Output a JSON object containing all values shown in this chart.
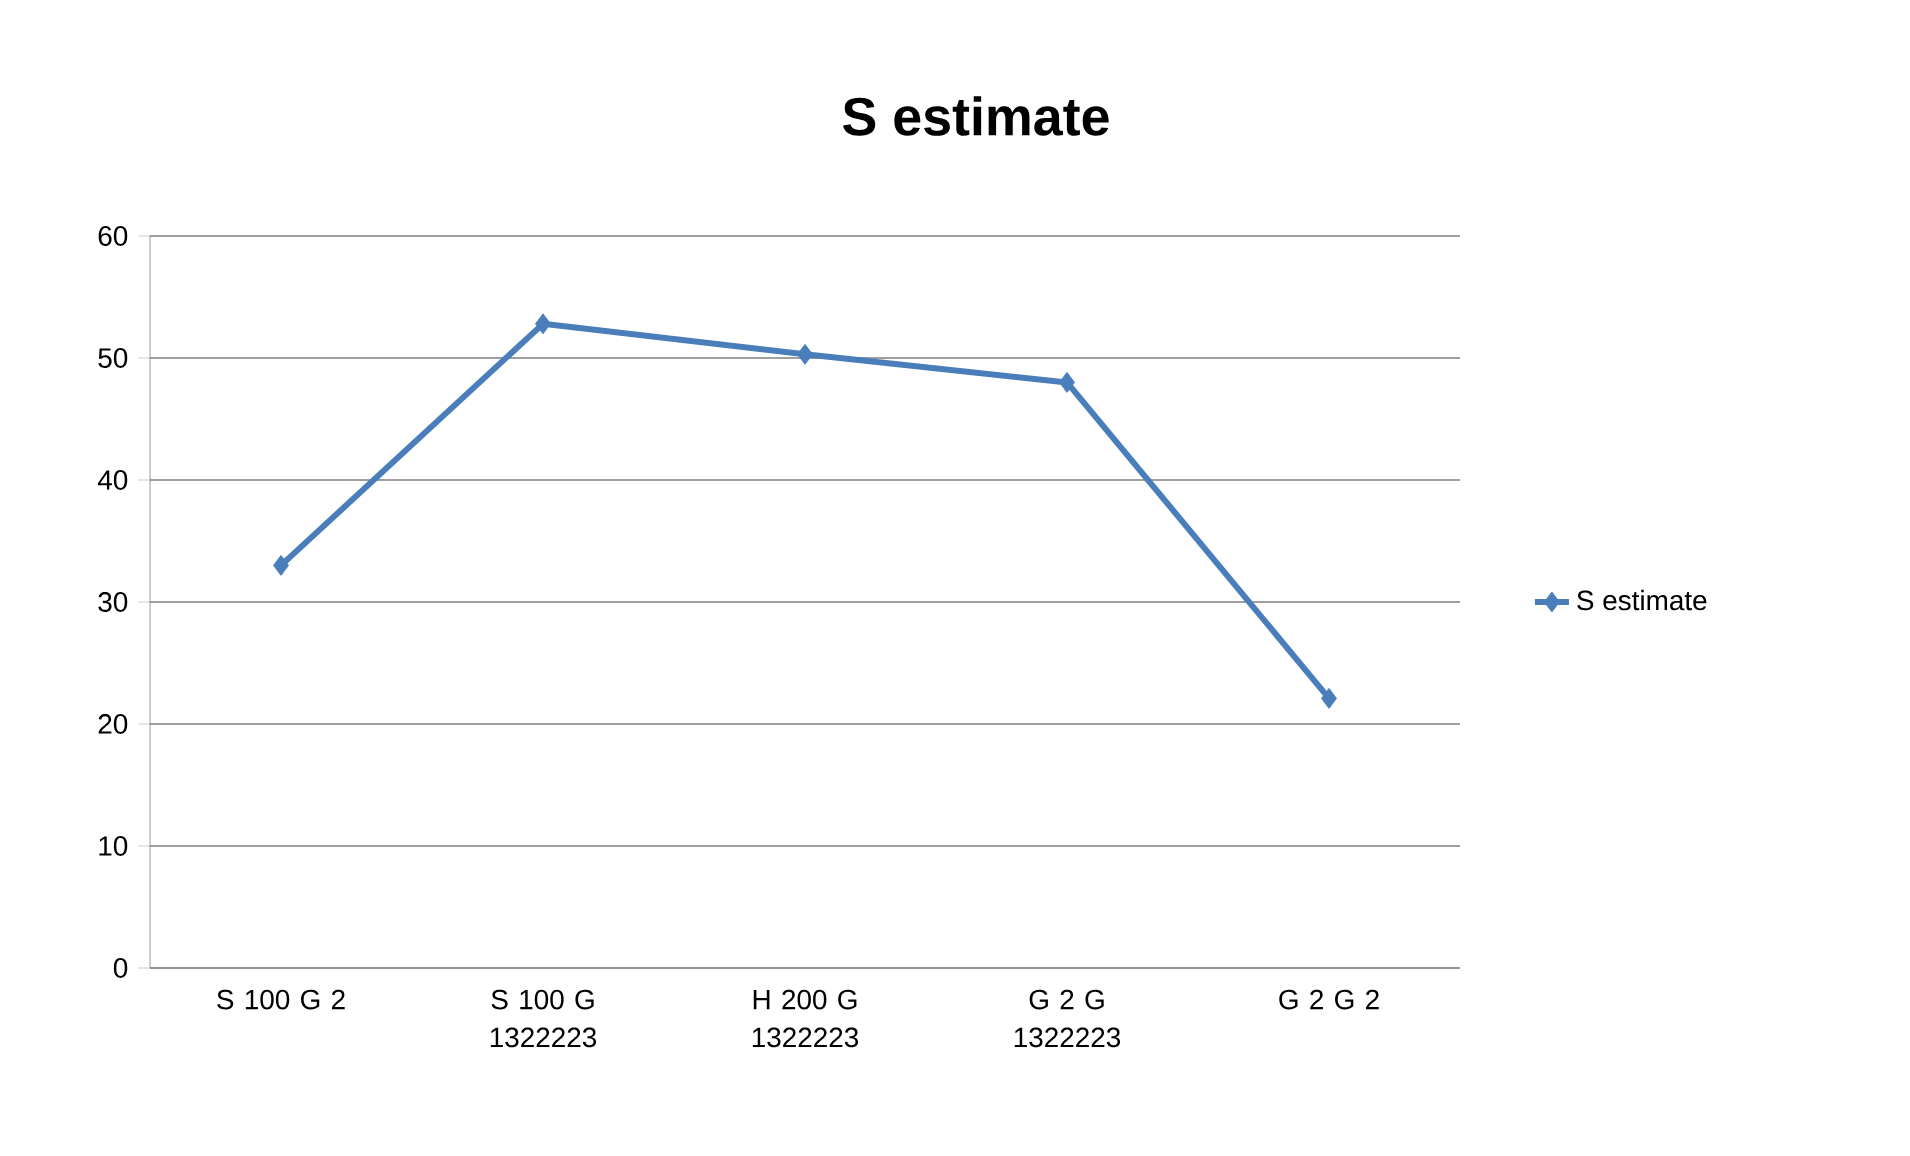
{
  "chart_data": {
    "type": "line",
    "title": "S estimate",
    "categories": [
      "S 100 G 2",
      "S 100 G 1322223",
      "H 200 G 1322223",
      "G 2 G 1322223",
      "G 2 G 2"
    ],
    "series": [
      {
        "name": "S estimate",
        "color": "#4a7ebb",
        "values": [
          33,
          52.8,
          50.3,
          48,
          22.1
        ]
      }
    ],
    "ylim": [
      0,
      60
    ],
    "yticks": [
      0,
      10,
      20,
      30,
      40,
      50,
      60
    ],
    "grid": "y",
    "legend": "right",
    "marker": "diamond",
    "line_style": "solid"
  }
}
